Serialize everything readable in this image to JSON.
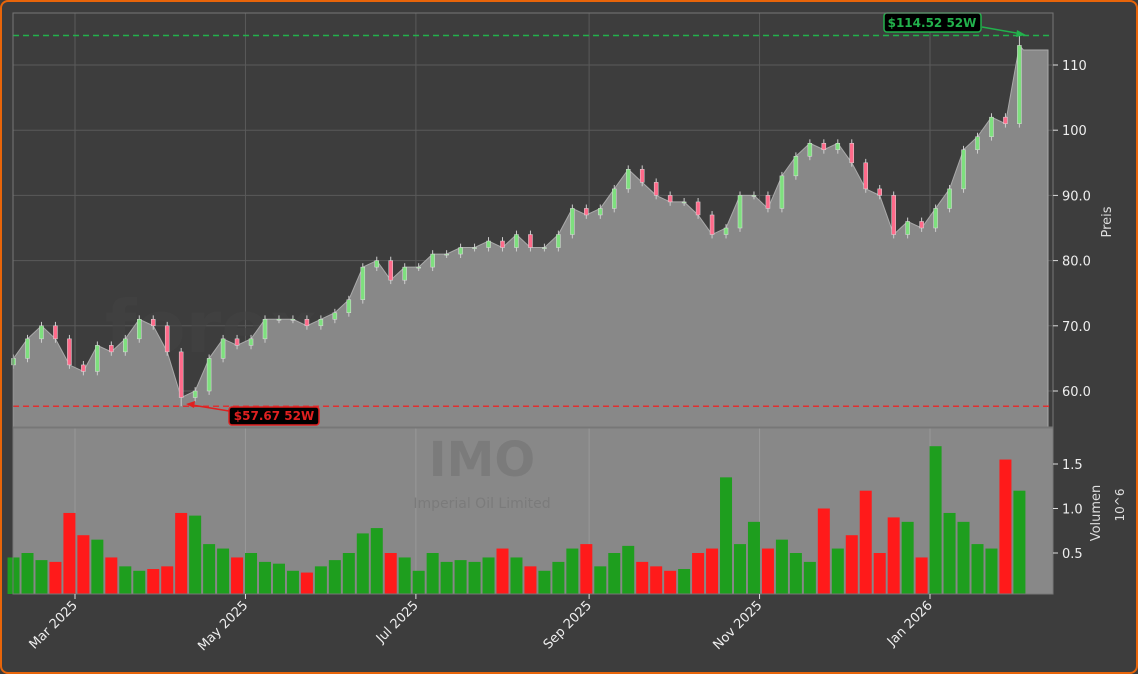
{
  "chart_data": [
    {
      "type": "candlestick",
      "ylabel": "Preis",
      "ylim": [
        54.5,
        118
      ],
      "yticks": [
        "60.0",
        "70.0",
        "80.0",
        "90.0",
        "100",
        "110"
      ],
      "ytick_values": [
        60,
        70,
        80,
        90,
        100,
        110
      ],
      "grid": true,
      "y_axis_side": "right",
      "dates": [
        "2025-02-07",
        "2025-02-12",
        "2025-02-17",
        "2025-02-22",
        "2025-02-27",
        "2025-03-04",
        "2025-03-09",
        "2025-03-14",
        "2025-03-19",
        "2025-03-24",
        "2025-03-29",
        "2025-04-03",
        "2025-04-08",
        "2025-04-13",
        "2025-04-18",
        "2025-04-23",
        "2025-04-28",
        "2025-05-03",
        "2025-05-08",
        "2025-05-13",
        "2025-05-18",
        "2025-05-23",
        "2025-05-28",
        "2025-06-02",
        "2025-06-07",
        "2025-06-12",
        "2025-06-17",
        "2025-06-22",
        "2025-06-27",
        "2025-07-02",
        "2025-07-07",
        "2025-07-12",
        "2025-07-17",
        "2025-07-22",
        "2025-07-27",
        "2025-08-01",
        "2025-08-06",
        "2025-08-11",
        "2025-08-16",
        "2025-08-21",
        "2025-08-26",
        "2025-08-31",
        "2025-09-05",
        "2025-09-10",
        "2025-09-15",
        "2025-09-20",
        "2025-09-25",
        "2025-09-30",
        "2025-10-05",
        "2025-10-10",
        "2025-10-15",
        "2025-10-20",
        "2025-10-25",
        "2025-10-30",
        "2025-11-04",
        "2025-11-09",
        "2025-11-14",
        "2025-11-19",
        "2025-11-24",
        "2025-11-29",
        "2025-12-04",
        "2025-12-09",
        "2025-12-14",
        "2025-12-19",
        "2025-12-24",
        "2025-12-29",
        "2026-01-03",
        "2026-01-08",
        "2026-01-13",
        "2026-01-18",
        "2026-01-23",
        "2026-01-28",
        "2026-02-02"
      ],
      "close": [
        65,
        68,
        70,
        68,
        64,
        63,
        67,
        66,
        68,
        71,
        70,
        66,
        59,
        60,
        65,
        68,
        67,
        68,
        71,
        71,
        71,
        70,
        71,
        72,
        74,
        79,
        80,
        77,
        79,
        79,
        81,
        81,
        82,
        82,
        83,
        82,
        84,
        82,
        82,
        84,
        88,
        87,
        88,
        91,
        94,
        92,
        90,
        89,
        89,
        87,
        84,
        85,
        90,
        90,
        88,
        93,
        96,
        98,
        97,
        98,
        95,
        91,
        90,
        84,
        86,
        85,
        88,
        91,
        97,
        99,
        102,
        101,
        113
      ],
      "annotations": [
        {
          "label": "$114.52 52W",
          "value": 114.52,
          "kind": "52-week high",
          "color": "#22b14c"
        },
        {
          "label": "$57.67 52W",
          "value": 57.67,
          "kind": "52-week low",
          "color": "#e02020"
        }
      ],
      "watermark": "forexsignale.trade",
      "colors": {
        "up": "#7ee07e",
        "down": "#ff6a8a",
        "area": "#888888",
        "background": "#3d3d3d"
      }
    },
    {
      "type": "bar",
      "ylabel": "Volumen",
      "yscale_label": "10^6",
      "yticks": [
        "0.5",
        "1.0",
        "1.5"
      ],
      "ytick_values": [
        0.5,
        1.0,
        1.5
      ],
      "volume_millions": [
        0.45,
        0.5,
        0.42,
        0.4,
        0.95,
        0.7,
        0.65,
        0.45,
        0.35,
        0.3,
        0.32,
        0.35,
        0.95,
        0.92,
        0.6,
        0.55,
        0.45,
        0.5,
        0.4,
        0.38,
        0.3,
        0.28,
        0.35,
        0.42,
        0.5,
        0.72,
        0.78,
        0.5,
        0.45,
        0.3,
        0.5,
        0.4,
        0.42,
        0.4,
        0.45,
        0.55,
        0.45,
        0.35,
        0.3,
        0.4,
        0.55,
        0.6,
        0.35,
        0.5,
        0.58,
        0.4,
        0.35,
        0.3,
        0.32,
        0.5,
        0.55,
        1.35,
        0.6,
        0.85,
        0.55,
        0.65,
        0.5,
        0.4,
        1.0,
        0.55,
        0.7,
        1.2,
        0.5,
        0.9,
        0.85,
        0.45,
        1.7,
        0.95,
        0.85,
        0.6,
        0.55,
        1.55,
        1.2
      ],
      "xticks": [
        "Mar 2025",
        "May 2025",
        "Jul 2025",
        "Sep 2025",
        "Nov 2025",
        "Jan 2026"
      ],
      "xtick_dates": [
        "2025-03-01",
        "2025-05-01",
        "2025-07-01",
        "2025-09-01",
        "2025-11-01",
        "2026-01-01"
      ],
      "colors": {
        "up": "#1e9e1e",
        "down": "#ff1a1a",
        "background": "#888888"
      }
    }
  ],
  "ticker": {
    "symbol": "IMO",
    "name": "Imperial Oil Limited"
  }
}
